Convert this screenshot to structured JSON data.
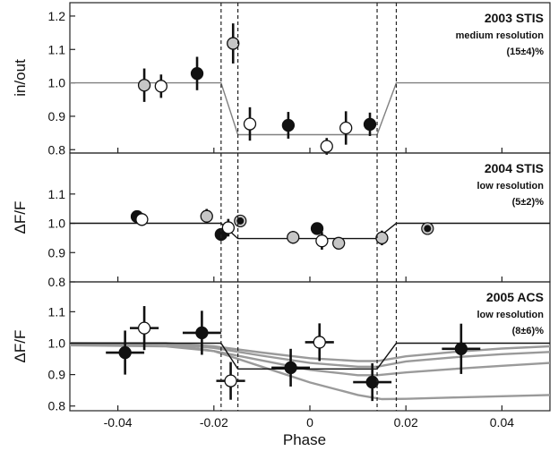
{
  "chart_data": {
    "type": "scatter",
    "xlabel": "Phase",
    "xlim": [
      -0.05,
      0.05
    ],
    "xticks": [
      -0.04,
      -0.02,
      0,
      0.02,
      0.04
    ],
    "xtick_labels": [
      "-0.04",
      "-0.02",
      "0",
      "0.02",
      "0.04"
    ],
    "contact_phases": [
      -0.0185,
      -0.015,
      0.014,
      0.018
    ],
    "panels": [
      {
        "id": "stis2003",
        "ylabel": "in/out",
        "ylim": [
          0.79,
          1.24
        ],
        "yticks": [
          0.8,
          0.9,
          1.0,
          1.1,
          1.2
        ],
        "ytick_labels": [
          "0.8",
          "0.9",
          "1.0",
          "1.1",
          "1.2"
        ],
        "title": "2003 STIS",
        "subtitle": "medium resolution",
        "depth_label": "(15±4)%",
        "model_color": "#808080",
        "model": [
          [
            -0.05,
            1.0
          ],
          [
            -0.0185,
            1.0
          ],
          [
            -0.015,
            0.845
          ],
          [
            0.014,
            0.845
          ],
          [
            0.018,
            1.0
          ],
          [
            0.05,
            1.0
          ]
        ],
        "extra_models": [],
        "points": [
          {
            "x": -0.0345,
            "y": 0.993,
            "yerr": 0.05,
            "xerr": 0,
            "fill": "#c6c6c6"
          },
          {
            "x": -0.031,
            "y": 0.99,
            "yerr": 0.035,
            "xerr": 0,
            "fill": "#ffffff"
          },
          {
            "x": -0.0235,
            "y": 1.028,
            "yerr": 0.05,
            "xerr": 0,
            "fill": "#111111"
          },
          {
            "x": -0.016,
            "y": 1.118,
            "yerr": 0.06,
            "xerr": 0,
            "fill": "#c6c6c6"
          },
          {
            "x": -0.0125,
            "y": 0.877,
            "yerr": 0.05,
            "xerr": 0,
            "fill": "#ffffff"
          },
          {
            "x": -0.0045,
            "y": 0.873,
            "yerr": 0.04,
            "xerr": 0,
            "fill": "#111111"
          },
          {
            "x": 0.0035,
            "y": 0.81,
            "yerr": 0.025,
            "xerr": 0,
            "fill": "#ffffff"
          },
          {
            "x": 0.0075,
            "y": 0.865,
            "yerr": 0.05,
            "xerr": 0,
            "fill": "#ffffff"
          },
          {
            "x": 0.0125,
            "y": 0.876,
            "yerr": 0.035,
            "xerr": 0,
            "fill": "#111111"
          }
        ]
      },
      {
        "id": "stis2004",
        "ylabel": "ΔF/F",
        "ylim": [
          0.8,
          1.24
        ],
        "yticks": [
          0.8,
          0.9,
          1.0,
          1.1
        ],
        "ytick_labels": [
          "0.8",
          "0.9",
          "1.0",
          "1.1"
        ],
        "title": "2004 STIS",
        "subtitle": "low resolution",
        "depth_label": "(5±2)%",
        "model_color": "#111111",
        "model": [
          [
            -0.05,
            1.0
          ],
          [
            -0.0185,
            1.0
          ],
          [
            -0.015,
            0.948
          ],
          [
            0.014,
            0.948
          ],
          [
            0.018,
            1.0
          ],
          [
            0.05,
            1.0
          ]
        ],
        "extra_models": [],
        "points": [
          {
            "x": -0.036,
            "y": 1.023,
            "yerr": 0.02,
            "xerr": 0,
            "fill": "#111111"
          },
          {
            "x": -0.035,
            "y": 1.013,
            "yerr": 0.022,
            "xerr": 0,
            "fill": "#ffffff"
          },
          {
            "x": -0.0215,
            "y": 1.024,
            "yerr": 0.025,
            "xerr": 0,
            "fill": "#c6c6c6"
          },
          {
            "x": -0.0185,
            "y": 0.962,
            "yerr": 0.018,
            "xerr": 0,
            "fill": "#111111"
          },
          {
            "x": -0.017,
            "y": 0.985,
            "yerr": 0.03,
            "xerr": 0,
            "fill": "#ffffff"
          },
          {
            "x": -0.0145,
            "y": 1.008,
            "yerr": 0.02,
            "xerr": 0,
            "fill": "#111111",
            "ring": "#c6c6c6"
          },
          {
            "x": -0.0035,
            "y": 0.952,
            "yerr": 0.022,
            "xerr": 0,
            "fill": "#c6c6c6"
          },
          {
            "x": 0.0015,
            "y": 0.982,
            "yerr": 0.02,
            "xerr": 0,
            "fill": "#111111"
          },
          {
            "x": 0.0025,
            "y": 0.94,
            "yerr": 0.03,
            "xerr": 0,
            "fill": "#ffffff"
          },
          {
            "x": 0.006,
            "y": 0.932,
            "yerr": 0.02,
            "xerr": 0,
            "fill": "#c6c6c6"
          },
          {
            "x": 0.015,
            "y": 0.95,
            "yerr": 0.025,
            "xerr": 0,
            "fill": "#c6c6c6"
          },
          {
            "x": 0.0245,
            "y": 0.982,
            "yerr": 0.02,
            "xerr": 0,
            "fill": "#111111",
            "ring": "#c6c6c6"
          }
        ]
      },
      {
        "id": "acs2005",
        "ylabel": "ΔF/F",
        "ylim": [
          0.785,
          1.195
        ],
        "yticks": [
          0.8,
          0.9,
          1.0,
          1.1
        ],
        "ytick_labels": [
          "0.8",
          "0.9",
          "1.0",
          "1.1"
        ],
        "title": "2005 ACS",
        "subtitle": "low resolution",
        "depth_label": "(8±6)%",
        "model_color": "#111111",
        "model": [
          [
            -0.05,
            1.0
          ],
          [
            -0.0185,
            1.0
          ],
          [
            -0.015,
            0.918
          ],
          [
            0.014,
            0.918
          ],
          [
            0.018,
            1.0
          ],
          [
            0.05,
            1.0
          ]
        ],
        "extra_models": [
          [
            [
              -0.05,
              1.0
            ],
            [
              -0.03,
              1.0
            ],
            [
              -0.02,
              0.99
            ],
            [
              -0.01,
              0.97
            ],
            [
              0.0,
              0.952
            ],
            [
              0.01,
              0.943
            ],
            [
              0.014,
              0.943
            ],
            [
              0.02,
              0.958
            ],
            [
              0.03,
              0.972
            ],
            [
              0.04,
              0.983
            ],
            [
              0.05,
              0.99
            ]
          ],
          [
            [
              -0.05,
              1.0
            ],
            [
              -0.03,
              0.998
            ],
            [
              -0.02,
              0.985
            ],
            [
              -0.01,
              0.96
            ],
            [
              0.0,
              0.937
            ],
            [
              0.01,
              0.925
            ],
            [
              0.014,
              0.925
            ],
            [
              0.02,
              0.942
            ],
            [
              0.03,
              0.955
            ],
            [
              0.04,
              0.965
            ],
            [
              0.05,
              0.972
            ]
          ],
          [
            [
              -0.05,
              0.993
            ],
            [
              -0.03,
              0.99
            ],
            [
              -0.02,
              0.975
            ],
            [
              -0.01,
              0.945
            ],
            [
              0.0,
              0.915
            ],
            [
              0.01,
              0.898
            ],
            [
              0.014,
              0.898
            ],
            [
              0.02,
              0.907
            ],
            [
              0.03,
              0.918
            ],
            [
              0.04,
              0.928
            ],
            [
              0.05,
              0.937
            ]
          ],
          [
            [
              -0.05,
              0.998
            ],
            [
              -0.03,
              0.997
            ],
            [
              -0.02,
              0.975
            ],
            [
              -0.01,
              0.925
            ],
            [
              0.0,
              0.875
            ],
            [
              0.01,
              0.835
            ],
            [
              0.015,
              0.822
            ],
            [
              0.02,
              0.823
            ],
            [
              0.03,
              0.827
            ],
            [
              0.04,
              0.831
            ],
            [
              0.05,
              0.835
            ]
          ]
        ],
        "points": [
          {
            "x": -0.0385,
            "y": 0.97,
            "yerr": 0.07,
            "xerr": 0.004,
            "fill": "#111111"
          },
          {
            "x": -0.0345,
            "y": 1.048,
            "yerr": 0.07,
            "xerr": 0.003,
            "fill": "#ffffff"
          },
          {
            "x": -0.0225,
            "y": 1.033,
            "yerr": 0.07,
            "xerr": 0.004,
            "fill": "#111111"
          },
          {
            "x": -0.0165,
            "y": 0.88,
            "yerr": 0.06,
            "xerr": 0.003,
            "fill": "#ffffff"
          },
          {
            "x": -0.004,
            "y": 0.922,
            "yerr": 0.06,
            "xerr": 0.004,
            "fill": "#111111"
          },
          {
            "x": 0.002,
            "y": 1.003,
            "yerr": 0.06,
            "xerr": 0.003,
            "fill": "#ffffff"
          },
          {
            "x": 0.013,
            "y": 0.876,
            "yerr": 0.06,
            "xerr": 0.004,
            "fill": "#111111"
          },
          {
            "x": 0.0315,
            "y": 0.982,
            "yerr": 0.08,
            "xerr": 0.004,
            "fill": "#111111"
          }
        ]
      }
    ]
  }
}
